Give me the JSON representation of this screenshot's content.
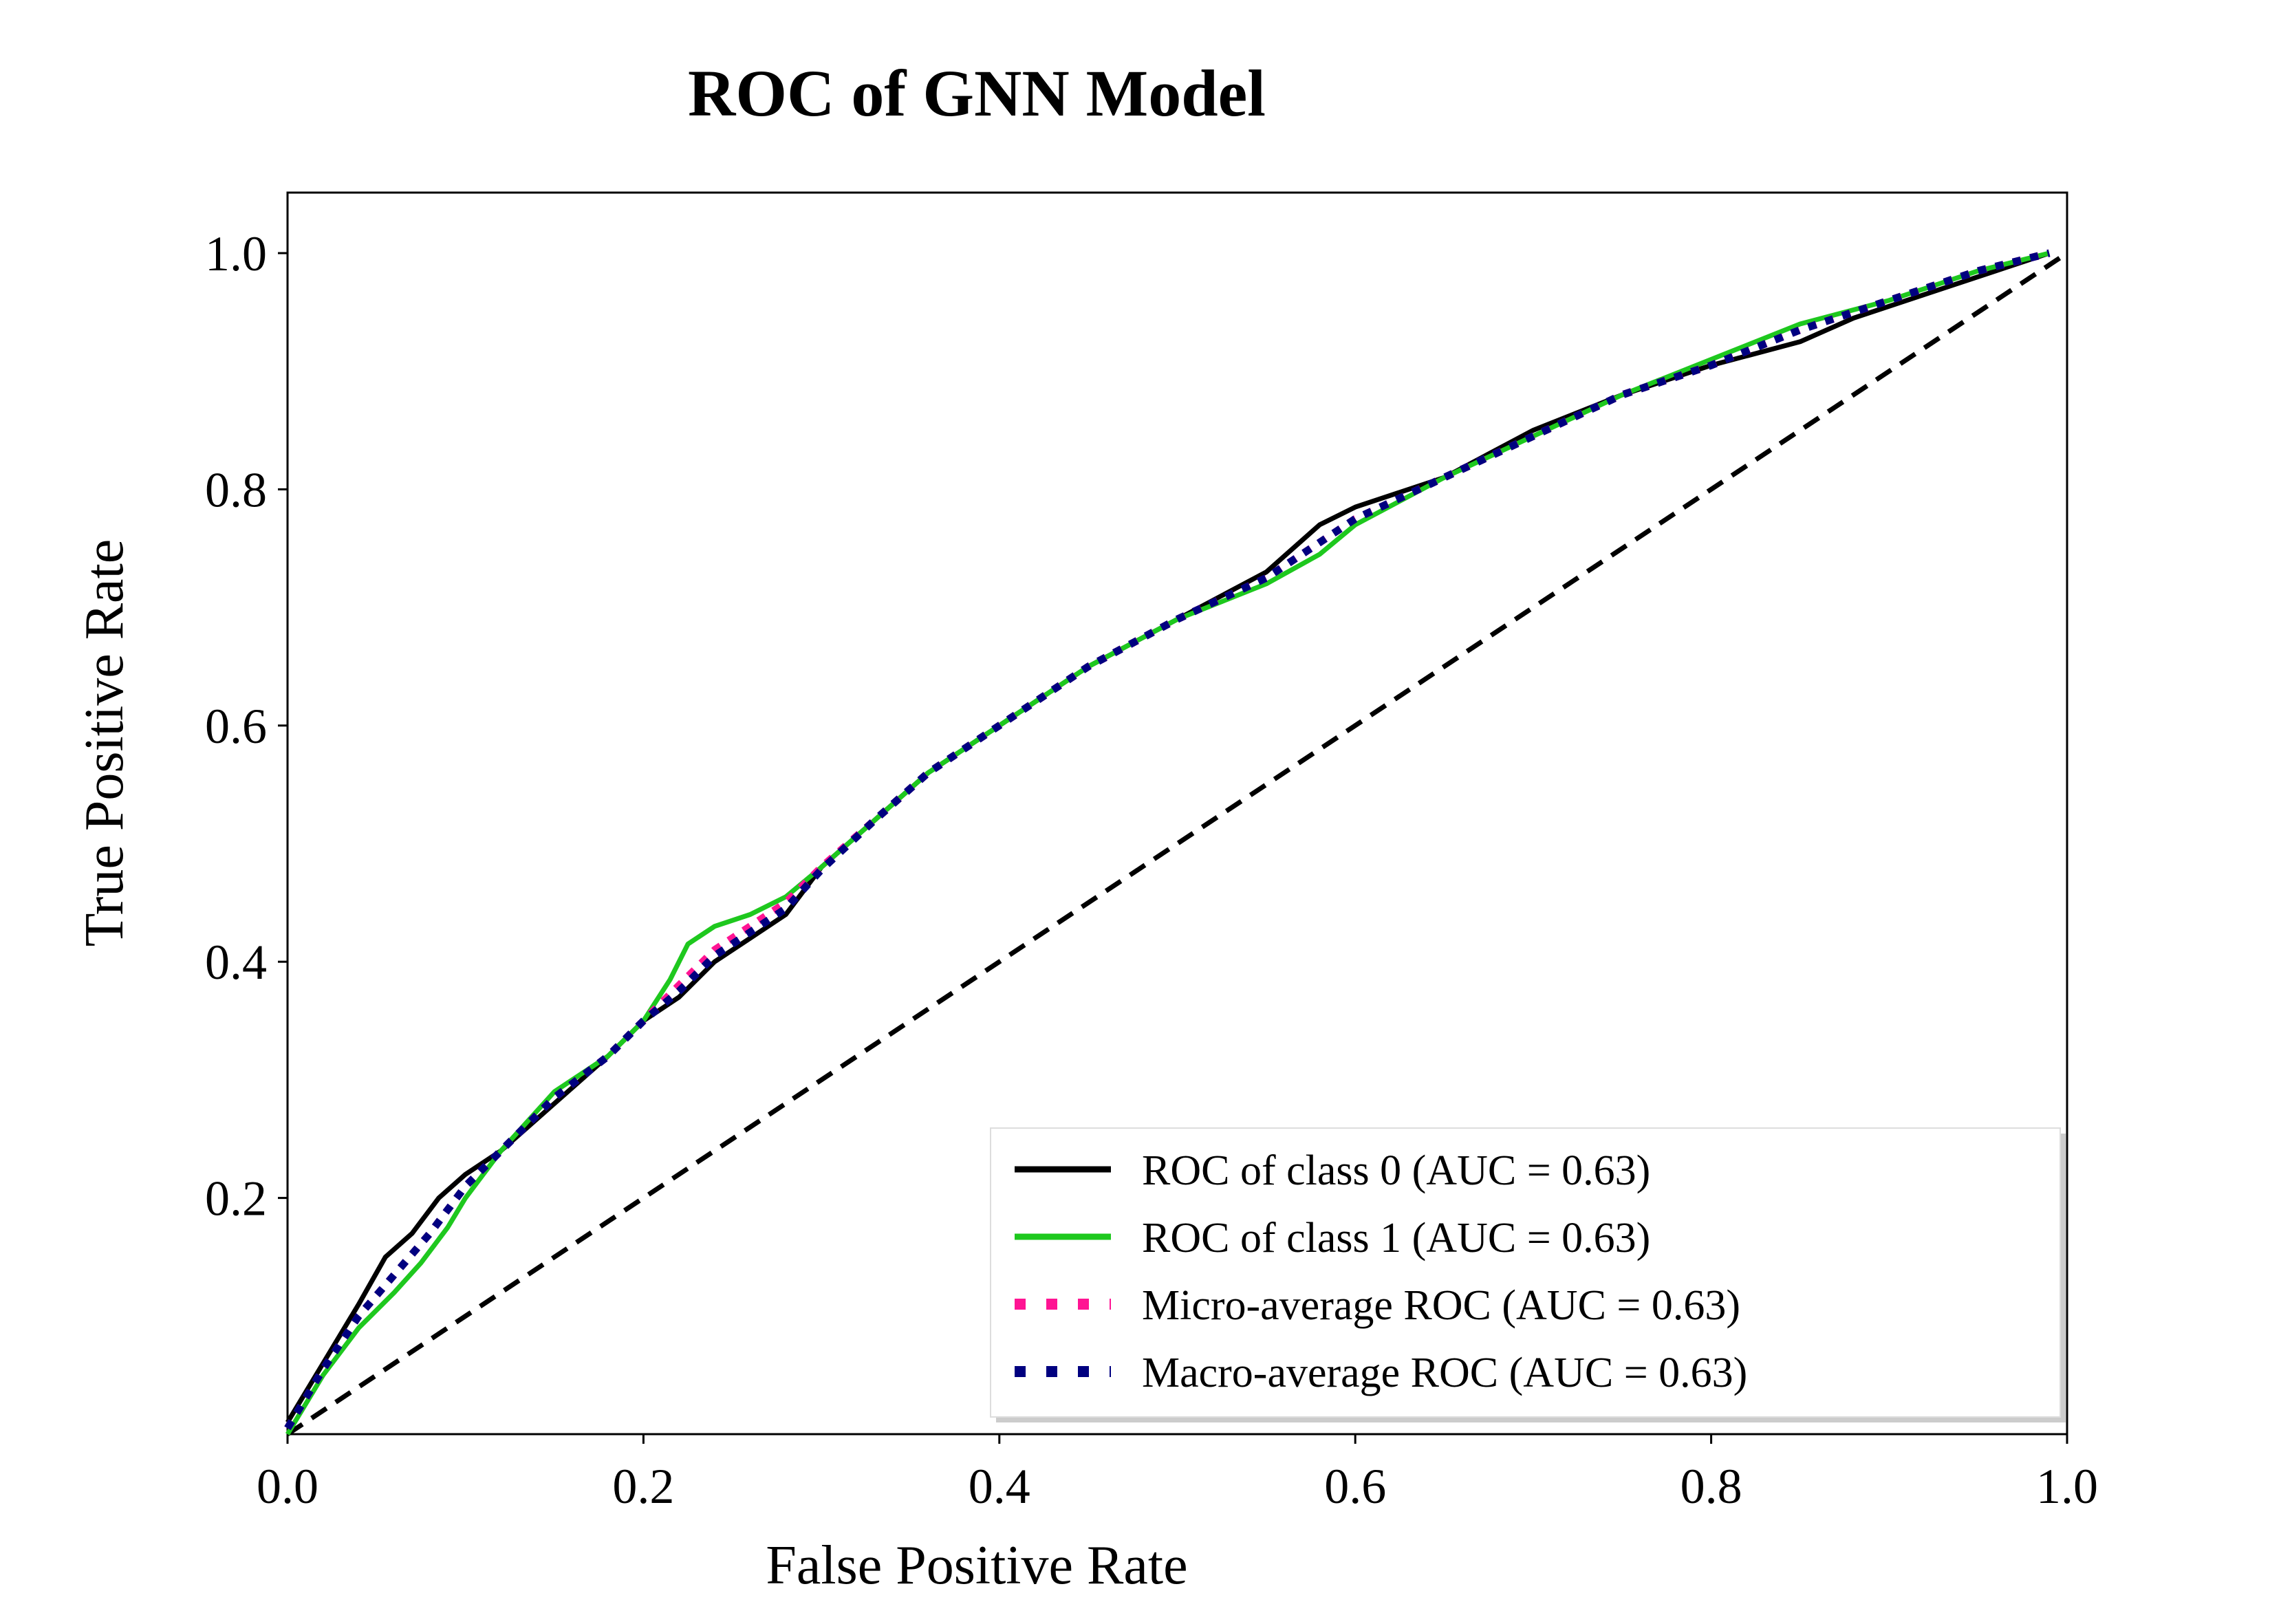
{
  "chart_data": {
    "type": "line",
    "title": "ROC of GNN Model",
    "xlabel": "False Positive Rate",
    "ylabel": "True Positive Rate",
    "xlim": [
      0.0,
      1.0
    ],
    "ylim": [
      0.0,
      1.05
    ],
    "xticks": [
      "0.0",
      "0.2",
      "0.4",
      "0.6",
      "0.8",
      "1.0"
    ],
    "yticks": [
      "0.2",
      "0.4",
      "0.6",
      "0.8",
      "1.0"
    ],
    "grid": false,
    "legend_position": "lower-right",
    "series": [
      {
        "name": "ROC of class 0 (AUC = 0.63)",
        "color": "#000000",
        "style": "solid",
        "points": [
          [
            0,
            0.01
          ],
          [
            0.02,
            0.06
          ],
          [
            0.04,
            0.11
          ],
          [
            0.055,
            0.15
          ],
          [
            0.07,
            0.17
          ],
          [
            0.085,
            0.2
          ],
          [
            0.1,
            0.22
          ],
          [
            0.12,
            0.24
          ],
          [
            0.15,
            0.28
          ],
          [
            0.18,
            0.32
          ],
          [
            0.2,
            0.35
          ],
          [
            0.22,
            0.37
          ],
          [
            0.24,
            0.4
          ],
          [
            0.26,
            0.42
          ],
          [
            0.28,
            0.44
          ],
          [
            0.3,
            0.48
          ],
          [
            0.33,
            0.52
          ],
          [
            0.36,
            0.56
          ],
          [
            0.4,
            0.6
          ],
          [
            0.45,
            0.65
          ],
          [
            0.5,
            0.69
          ],
          [
            0.55,
            0.73
          ],
          [
            0.58,
            0.77
          ],
          [
            0.6,
            0.785
          ],
          [
            0.65,
            0.81
          ],
          [
            0.7,
            0.85
          ],
          [
            0.75,
            0.88
          ],
          [
            0.8,
            0.905
          ],
          [
            0.85,
            0.925
          ],
          [
            0.88,
            0.945
          ],
          [
            0.92,
            0.965
          ],
          [
            0.96,
            0.985
          ],
          [
            0.99,
            1.0
          ]
        ]
      },
      {
        "name": "ROC of class 1 (AUC = 0.63)",
        "color": "#1ec81e",
        "style": "solid",
        "points": [
          [
            0,
            0.0
          ],
          [
            0.02,
            0.05
          ],
          [
            0.04,
            0.09
          ],
          [
            0.06,
            0.12
          ],
          [
            0.075,
            0.145
          ],
          [
            0.09,
            0.175
          ],
          [
            0.1,
            0.2
          ],
          [
            0.12,
            0.24
          ],
          [
            0.15,
            0.29
          ],
          [
            0.18,
            0.32
          ],
          [
            0.2,
            0.35
          ],
          [
            0.215,
            0.385
          ],
          [
            0.225,
            0.415
          ],
          [
            0.24,
            0.43
          ],
          [
            0.26,
            0.44
          ],
          [
            0.28,
            0.455
          ],
          [
            0.3,
            0.48
          ],
          [
            0.33,
            0.52
          ],
          [
            0.36,
            0.56
          ],
          [
            0.4,
            0.6
          ],
          [
            0.45,
            0.65
          ],
          [
            0.5,
            0.69
          ],
          [
            0.55,
            0.72
          ],
          [
            0.58,
            0.745
          ],
          [
            0.6,
            0.77
          ],
          [
            0.65,
            0.81
          ],
          [
            0.7,
            0.845
          ],
          [
            0.75,
            0.88
          ],
          [
            0.8,
            0.91
          ],
          [
            0.85,
            0.94
          ],
          [
            0.9,
            0.96
          ],
          [
            0.95,
            0.985
          ],
          [
            0.99,
            1.0
          ]
        ]
      },
      {
        "name": "Micro-average ROC (AUC = 0.63)",
        "color": "#ff1493",
        "style": "dotted",
        "points": [
          [
            0,
            0.005
          ],
          [
            0.02,
            0.055
          ],
          [
            0.04,
            0.1
          ],
          [
            0.06,
            0.135
          ],
          [
            0.08,
            0.17
          ],
          [
            0.1,
            0.21
          ],
          [
            0.12,
            0.24
          ],
          [
            0.15,
            0.285
          ],
          [
            0.18,
            0.32
          ],
          [
            0.2,
            0.35
          ],
          [
            0.22,
            0.38
          ],
          [
            0.24,
            0.41
          ],
          [
            0.26,
            0.43
          ],
          [
            0.28,
            0.45
          ],
          [
            0.3,
            0.48
          ],
          [
            0.33,
            0.52
          ],
          [
            0.36,
            0.56
          ],
          [
            0.4,
            0.6
          ],
          [
            0.45,
            0.65
          ],
          [
            0.5,
            0.69
          ],
          [
            0.55,
            0.725
          ],
          [
            0.6,
            0.775
          ],
          [
            0.65,
            0.81
          ],
          [
            0.7,
            0.845
          ],
          [
            0.75,
            0.88
          ],
          [
            0.8,
            0.905
          ],
          [
            0.85,
            0.935
          ],
          [
            0.9,
            0.96
          ],
          [
            0.95,
            0.985
          ],
          [
            0.99,
            1.0
          ]
        ]
      },
      {
        "name": "Macro-average ROC (AUC = 0.63)",
        "color": "#000080",
        "style": "dotted",
        "points": [
          [
            0,
            0.005
          ],
          [
            0.02,
            0.055
          ],
          [
            0.04,
            0.1
          ],
          [
            0.06,
            0.135
          ],
          [
            0.08,
            0.17
          ],
          [
            0.1,
            0.21
          ],
          [
            0.12,
            0.24
          ],
          [
            0.15,
            0.285
          ],
          [
            0.18,
            0.32
          ],
          [
            0.2,
            0.35
          ],
          [
            0.22,
            0.375
          ],
          [
            0.24,
            0.405
          ],
          [
            0.26,
            0.425
          ],
          [
            0.28,
            0.445
          ],
          [
            0.3,
            0.478
          ],
          [
            0.33,
            0.52
          ],
          [
            0.36,
            0.56
          ],
          [
            0.4,
            0.6
          ],
          [
            0.45,
            0.65
          ],
          [
            0.5,
            0.69
          ],
          [
            0.55,
            0.725
          ],
          [
            0.6,
            0.775
          ],
          [
            0.65,
            0.81
          ],
          [
            0.7,
            0.845
          ],
          [
            0.75,
            0.88
          ],
          [
            0.8,
            0.905
          ],
          [
            0.85,
            0.935
          ],
          [
            0.9,
            0.96
          ],
          [
            0.95,
            0.985
          ],
          [
            0.99,
            1.0
          ]
        ]
      }
    ],
    "reference_line": {
      "color": "#000000",
      "style": "dashed",
      "points": [
        [
          0,
          0
        ],
        [
          1,
          1
        ]
      ]
    }
  }
}
